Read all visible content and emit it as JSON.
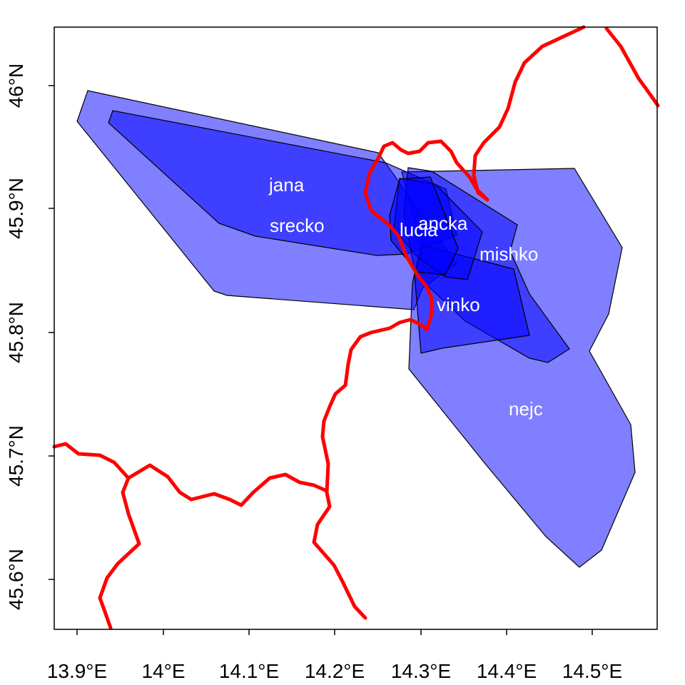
{
  "map": {
    "x_ticks": [
      "13.9°E",
      "14°E",
      "14.1°E",
      "14.2°E",
      "14.3°E",
      "14.4°E",
      "14.5°E"
    ],
    "y_ticks": [
      "45.6°N",
      "45.7°N",
      "45.8°N",
      "45.9°N",
      "46°N"
    ],
    "fill_color": "#0000ff",
    "border_color": "#ff0000",
    "frame_color": "#000000",
    "home_ranges": [
      {
        "name": "jana",
        "label": "jana",
        "area": "large polygon spanning west to center"
      },
      {
        "name": "srecko",
        "label": "srecko",
        "area": "elongated polygon west to center"
      },
      {
        "name": "ancka",
        "label": "ancka",
        "area": "center polygon"
      },
      {
        "name": "lucia",
        "label": "lucia",
        "area": "small center polygon"
      },
      {
        "name": "mishko",
        "label": "mishko",
        "area": "polygon east of center"
      },
      {
        "name": "vinko",
        "label": "vinko",
        "area": "polygon south-east of center"
      },
      {
        "name": "nejc",
        "label": "nejc",
        "area": "large polygon to the south-east"
      }
    ]
  }
}
